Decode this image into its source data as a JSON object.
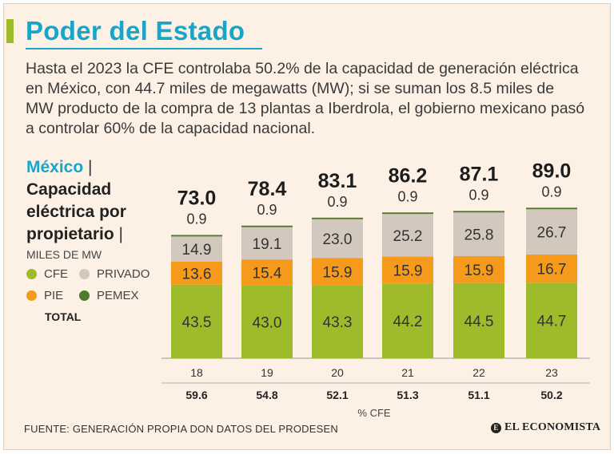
{
  "header": {
    "title": "Poder del Estado",
    "subtitle": "Hasta el 2023 la CFE controlaba 50.2% de la capacidad de generación eléctrica en México, con 44.7 miles de megawatts (MW); si se suman los 8.5 miles de MW producto de la compra de 13 plantas a Iberdrola, el gobierno mexicano pasó a controlar 60% de la capacidad nacional."
  },
  "panel": {
    "country": "México",
    "separator": "|",
    "line1": "Capacidad",
    "line2": "eléctrica por",
    "line3": "propietario",
    "units": "MILES DE MW",
    "total_label": "TOTAL"
  },
  "colors": {
    "cfe": "#9dbb2a",
    "pie": "#f59a1b",
    "privado": "#d3c8bd",
    "pemex": "#4e7a2c",
    "accent": "#17a6c9"
  },
  "chart_data": {
    "type": "bar",
    "stacked": true,
    "title": "Capacidad eléctrica por propietario",
    "ylabel": "MILES DE MW",
    "categories": [
      "18",
      "19",
      "20",
      "21",
      "22",
      "23"
    ],
    "series": [
      {
        "name": "CFE",
        "color": "#9dbb2a",
        "values": [
          43.5,
          43.0,
          43.3,
          44.2,
          44.5,
          44.7
        ]
      },
      {
        "name": "PIE",
        "color": "#f59a1b",
        "values": [
          13.6,
          15.4,
          15.9,
          15.9,
          15.9,
          16.7
        ]
      },
      {
        "name": "PRIVADO",
        "color": "#d3c8bd",
        "values": [
          14.9,
          19.1,
          23.0,
          25.2,
          25.8,
          26.7
        ]
      },
      {
        "name": "PEMEX",
        "color": "#4e7a2c",
        "values": [
          0.9,
          0.9,
          0.9,
          0.9,
          0.9,
          0.9
        ]
      }
    ],
    "totals": [
      "73.0",
      "78.4",
      "83.1",
      "86.2",
      "87.1",
      "89.0"
    ],
    "pct_cfe": [
      "59.6",
      "54.8",
      "52.1",
      "51.3",
      "51.1",
      "50.2"
    ],
    "pct_label": "% CFE",
    "ylim": [
      0,
      89
    ]
  },
  "legend": [
    {
      "name": "CFE",
      "color": "#9dbb2a"
    },
    {
      "name": "PRIVADO",
      "color": "#d3c8bd"
    },
    {
      "name": "PIE",
      "color": "#f59a1b"
    },
    {
      "name": "PEMEX",
      "color": "#4e7a2c"
    }
  ],
  "footer": {
    "source": "FUENTE: GENERACIÓN PROPIA DON DATOS DEL PRODESEN",
    "logo": "EL ECONOMISTA",
    "logo_mark": "E"
  }
}
